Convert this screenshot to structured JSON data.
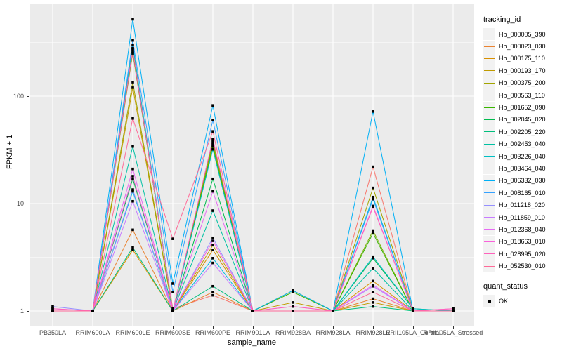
{
  "chart_data": {
    "type": "line",
    "title": "",
    "xlabel": "sample_name",
    "ylabel": "FPKM + 1",
    "yscale": "log10",
    "ylim": [
      1,
      550
    ],
    "yticks": [
      1,
      10,
      100
    ],
    "grid": "white major and minor gridlines on grey panel",
    "legend_position": "right",
    "panel_background": "#EBEBEB",
    "gridline_color": "#FFFFFF",
    "x_categories": [
      "PB350LA",
      "RRIM600LA",
      "RRIM600LE",
      "RRIM600SE",
      "RRIM600PE",
      "RRIM901LA",
      "RRIM928BA",
      "RRIM928LA",
      "RRIM928LE",
      "RRII105LA_Control",
      "RRII105LA_Stressed"
    ],
    "legend": {
      "series_title": "tracking_id",
      "points_title": "quant_status"
    },
    "points": {
      "marker": "square",
      "color": "#000000",
      "legend_label": "OK"
    },
    "series": [
      {
        "name": "Hb_000005_390",
        "color": "#F8766D",
        "values": [
          1,
          1,
          250,
          1.05,
          1.4,
          1,
          1,
          1,
          22,
          1,
          1
        ]
      },
      {
        "name": "Hb_000023_030",
        "color": "#EA8331",
        "values": [
          1,
          1,
          5.7,
          1,
          1.5,
          1,
          1,
          1,
          1.3,
          1,
          1
        ]
      },
      {
        "name": "Hb_000175_110",
        "color": "#D89000",
        "values": [
          1,
          1,
          3.7,
          1,
          3.7,
          1,
          1,
          1,
          1.9,
          1,
          1
        ]
      },
      {
        "name": "Hb_000193_170",
        "color": "#C09B00",
        "values": [
          1,
          1,
          120,
          1,
          4.1,
          1,
          1.2,
          1,
          1.2,
          1,
          1
        ]
      },
      {
        "name": "Hb_000375_200",
        "color": "#A3A500",
        "values": [
          1,
          1,
          135,
          1,
          36,
          1,
          1,
          1,
          14,
          1,
          1
        ]
      },
      {
        "name": "Hb_000563_110",
        "color": "#7CAE00",
        "values": [
          1,
          1,
          280,
          1,
          38,
          1,
          1.55,
          1,
          5.6,
          1,
          1
        ]
      },
      {
        "name": "Hb_001652_090",
        "color": "#39B600",
        "values": [
          1,
          1,
          260,
          1,
          34,
          1,
          1.5,
          1,
          5.3,
          1,
          1
        ]
      },
      {
        "name": "Hb_002045_020",
        "color": "#00BB4E",
        "values": [
          1,
          1,
          17,
          1,
          17,
          1,
          1,
          1,
          3.1,
          1.05,
          1
        ]
      },
      {
        "name": "Hb_002205_220",
        "color": "#00BF7D",
        "values": [
          1,
          1,
          3.9,
          1,
          1.7,
          1,
          1,
          1,
          1.1,
          1,
          1
        ]
      },
      {
        "name": "Hb_002453_040",
        "color": "#00C1A3",
        "values": [
          1,
          1,
          34,
          1,
          8.6,
          1,
          1,
          1,
          2.5,
          1,
          1
        ]
      },
      {
        "name": "Hb_003226_040",
        "color": "#00BFC4",
        "values": [
          1,
          1,
          300,
          1,
          32,
          1,
          1,
          1,
          3.2,
          1.05,
          1
        ]
      },
      {
        "name": "Hb_003464_040",
        "color": "#00BAE0",
        "values": [
          1,
          1,
          13,
          1,
          3.1,
          1,
          1,
          1,
          11.5,
          1,
          1
        ]
      },
      {
        "name": "Hb_006332_030",
        "color": "#00B0F6",
        "values": [
          1,
          1,
          520,
          1.8,
          82,
          1,
          1.55,
          1,
          72,
          1,
          1
        ]
      },
      {
        "name": "Hb_008165_010",
        "color": "#35A2FF",
        "values": [
          1,
          1,
          330,
          1.5,
          60,
          1,
          1,
          1,
          11,
          1,
          1
        ]
      },
      {
        "name": "Hb_011218_020",
        "color": "#9590FF",
        "values": [
          1.1,
          1,
          13.5,
          1,
          4.8,
          1,
          1,
          1,
          1.7,
          1,
          1
        ]
      },
      {
        "name": "Hb_011859_010",
        "color": "#C77CFF",
        "values": [
          1,
          1,
          10.5,
          1,
          2.8,
          1,
          1,
          1,
          1.7,
          1,
          1
        ]
      },
      {
        "name": "Hb_012368_040",
        "color": "#E76BF3",
        "values": [
          1,
          1,
          21,
          1,
          13,
          1,
          1.1,
          1,
          1.75,
          1,
          1
        ]
      },
      {
        "name": "Hb_018663_010",
        "color": "#FA62DB",
        "values": [
          1.05,
          1,
          18,
          1,
          4.5,
          1,
          1,
          1,
          9.5,
          1,
          1.05
        ]
      },
      {
        "name": "Hb_028995_020",
        "color": "#FF62BC",
        "values": [
          1.05,
          1,
          270,
          1,
          40,
          1,
          1.1,
          1,
          9.3,
          1,
          1.05
        ]
      },
      {
        "name": "Hb_052530_010",
        "color": "#FF6A98",
        "values": [
          1,
          1,
          62,
          4.7,
          47,
          1,
          1,
          1,
          1.5,
          1,
          1
        ]
      }
    ]
  }
}
